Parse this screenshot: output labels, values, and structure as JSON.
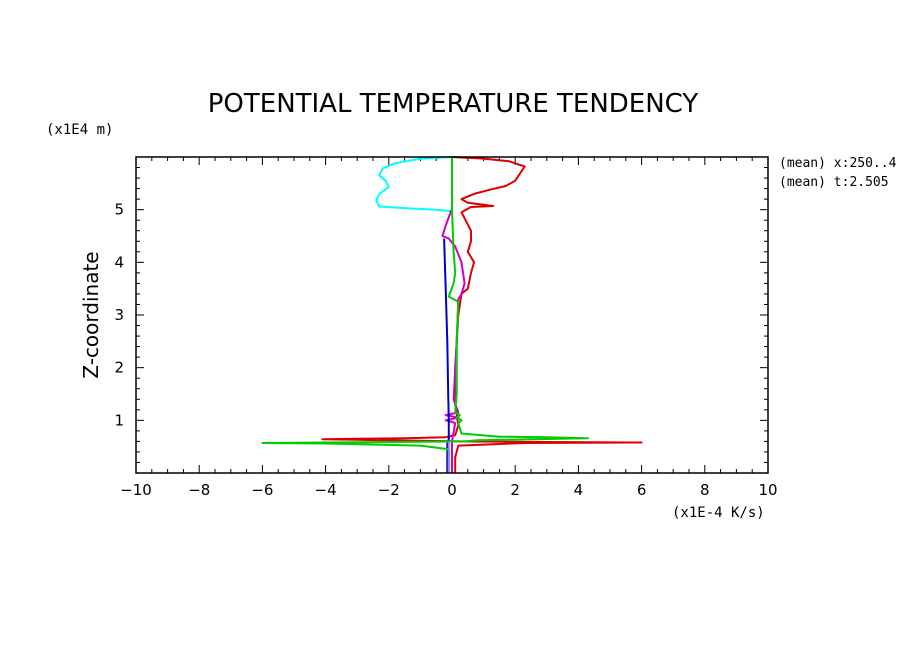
{
  "chart_data": {
    "type": "line",
    "title": "POTENTIAL TEMPERATURE TENDENCY",
    "xlabel": "(x1E-4 K/s)",
    "ylabel": "Z-coordinate",
    "yunit": "(x1E4 m)",
    "xlim": [
      -10,
      10
    ],
    "ylim": [
      0,
      6
    ],
    "xticks": [
      "−10",
      "−8",
      "−6",
      "−4",
      "−2",
      "0",
      "2",
      "4",
      "6",
      "8",
      "10"
    ],
    "yticks": [
      "1",
      "2",
      "3",
      "4",
      "5"
    ],
    "annotations": [
      "(mean) x:250..4",
      "(mean) t:2.505"
    ],
    "series": [
      {
        "color": "#00ffff",
        "points": [
          [
            0,
            6
          ],
          [
            -1,
            5.97
          ],
          [
            -1.8,
            5.88
          ],
          [
            -2.2,
            5.78
          ],
          [
            -2.3,
            5.65
          ],
          [
            -2.1,
            5.55
          ],
          [
            -2.0,
            5.43
          ],
          [
            -2.3,
            5.3
          ],
          [
            -2.4,
            5.18
          ],
          [
            -2.3,
            5.06
          ],
          [
            -1.5,
            5.03
          ],
          [
            -0.5,
            5.0
          ],
          [
            0,
            4.97
          ]
        ]
      },
      {
        "color": "#dd0000",
        "points": [
          [
            0,
            6
          ],
          [
            1,
            5.97
          ],
          [
            1.8,
            5.92
          ],
          [
            2.3,
            5.82
          ],
          [
            2.0,
            5.55
          ],
          [
            1.7,
            5.45
          ],
          [
            1.2,
            5.38
          ],
          [
            0.7,
            5.3
          ],
          [
            0.3,
            5.2
          ],
          [
            0.5,
            5.13
          ],
          [
            1.3,
            5.07
          ],
          [
            0.6,
            5.05
          ],
          [
            0.3,
            4.95
          ],
          [
            0.6,
            4.6
          ],
          [
            0.6,
            4.4
          ],
          [
            0.5,
            4.2
          ],
          [
            0.7,
            4.0
          ],
          [
            0.6,
            3.8
          ],
          [
            0.5,
            3.5
          ],
          [
            0.3,
            3.4
          ],
          [
            0.2,
            3.0
          ],
          [
            0.1,
            2.0
          ],
          [
            0.1,
            1.3
          ],
          [
            0.2,
            0.9
          ],
          [
            0.1,
            0.72
          ],
          [
            -0.2,
            0.68
          ],
          [
            -1.5,
            0.66
          ],
          [
            -3,
            0.65
          ],
          [
            -4.1,
            0.64
          ],
          [
            -3,
            0.63
          ],
          [
            -0.8,
            0.61
          ],
          [
            0.3,
            0.6
          ],
          [
            2.3,
            0.59
          ],
          [
            6,
            0.58
          ],
          [
            2.3,
            0.57
          ],
          [
            0.2,
            0.52
          ],
          [
            0.1,
            0.3
          ],
          [
            0.1,
            0
          ]
        ]
      },
      {
        "color": "#cc00cc",
        "points": [
          [
            0,
            5.02
          ],
          [
            -0.2,
            4.7
          ],
          [
            -0.3,
            4.5
          ],
          [
            -0.1,
            4.45
          ],
          [
            0.1,
            4.3
          ],
          [
            0.3,
            4.0
          ],
          [
            0.4,
            3.6
          ],
          [
            0.3,
            3.4
          ],
          [
            0.2,
            3.3
          ],
          [
            0.15,
            2.5
          ],
          [
            0.05,
            1.4
          ],
          [
            0.2,
            1.15
          ],
          [
            -0.2,
            1.1
          ],
          [
            0.2,
            1.05
          ],
          [
            -0.2,
            1.0
          ],
          [
            0.1,
            0.95
          ],
          [
            0,
            0.6
          ],
          [
            0,
            0
          ]
        ]
      },
      {
        "color": "#0000cc",
        "points": [
          [
            -0.25,
            4.45
          ],
          [
            -0.2,
            3.5
          ],
          [
            -0.15,
            2.5
          ],
          [
            -0.12,
            1.5
          ],
          [
            -0.1,
            1.0
          ],
          [
            -0.1,
            0.65
          ],
          [
            -0.15,
            0.55
          ],
          [
            -0.15,
            0
          ]
        ]
      },
      {
        "color": "#00cc00",
        "points": [
          [
            0,
            6
          ],
          [
            0,
            5.0
          ],
          [
            0.05,
            4.2
          ],
          [
            0.1,
            3.8
          ],
          [
            0.05,
            3.6
          ],
          [
            -0.1,
            3.35
          ],
          [
            0.2,
            3.25
          ],
          [
            0.15,
            2.5
          ],
          [
            0.15,
            1.5
          ],
          [
            0.1,
            1.15
          ],
          [
            0.25,
            1.1
          ],
          [
            0.15,
            1.05
          ],
          [
            0.3,
            1.0
          ],
          [
            0.2,
            0.95
          ],
          [
            0.3,
            0.75
          ],
          [
            1.5,
            0.69
          ],
          [
            3,
            0.68
          ],
          [
            4.3,
            0.66
          ],
          [
            2.5,
            0.64
          ],
          [
            0.8,
            0.62
          ],
          [
            0.4,
            0.6
          ],
          [
            -1.5,
            0.59
          ],
          [
            -4,
            0.58
          ],
          [
            -6,
            0.57
          ],
          [
            -4,
            0.56
          ],
          [
            -1,
            0.52
          ],
          [
            -0.1,
            0.45
          ],
          [
            -0.1,
            0
          ]
        ]
      },
      {
        "color": "#8888ff",
        "points": [
          [
            -0.1,
            0.6
          ],
          [
            -0.1,
            0
          ]
        ]
      }
    ]
  }
}
